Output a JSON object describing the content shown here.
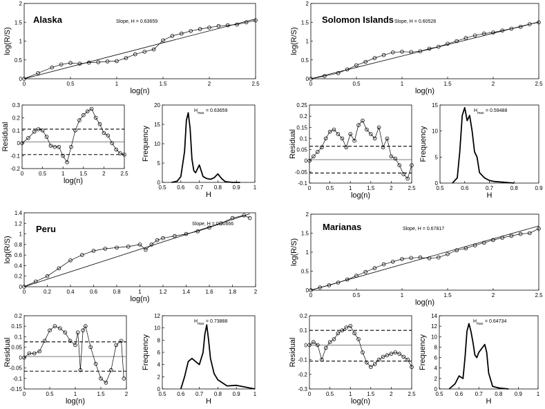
{
  "figure": {
    "text_color": "#000000",
    "line_color": "#000000",
    "marker": "open-circle"
  },
  "chart_data": [
    {
      "region": "Alaska",
      "rs": {
        "type": "scatter",
        "title": "Alaska",
        "annotation": "Slope, H = 0.63659",
        "xlabel": "log(n)",
        "ylabel": "log(R/S)",
        "xlim": [
          0,
          2.5
        ],
        "ylim": [
          0,
          2
        ],
        "xticks": [
          "0",
          "0.5",
          "1",
          "1.5",
          "2",
          "2.5"
        ],
        "yticks": [
          "0",
          "0.5",
          "1",
          "1.5",
          "2"
        ],
        "fit_line": {
          "x": [
            0,
            2.5
          ],
          "y": [
            0,
            1.59
          ]
        },
        "points": {
          "x": [
            0,
            0.15,
            0.3,
            0.4,
            0.5,
            0.6,
            0.7,
            0.8,
            0.9,
            1.0,
            1.1,
            1.2,
            1.3,
            1.4,
            1.5,
            1.6,
            1.7,
            1.8,
            1.9,
            2.0,
            2.1,
            2.2,
            2.3,
            2.4,
            2.5
          ],
          "y": [
            0,
            0.15,
            0.3,
            0.38,
            0.42,
            0.4,
            0.43,
            0.44,
            0.46,
            0.47,
            0.55,
            0.65,
            0.72,
            0.78,
            1.02,
            1.14,
            1.2,
            1.27,
            1.32,
            1.36,
            1.4,
            1.42,
            1.44,
            1.5,
            1.55
          ]
        }
      },
      "resid": {
        "type": "scatter",
        "xlabel": "log(n)",
        "ylabel": "Residual",
        "xlim": [
          0,
          2.5
        ],
        "ylim": [
          -0.2,
          0.3
        ],
        "xticks": [
          "0",
          "0.5",
          "1",
          "1.5",
          "2",
          "2.5"
        ],
        "yticks": [
          "-0.2",
          "-0.1",
          "0",
          "0.1",
          "0.2",
          "0.3"
        ],
        "hlines": [
          0.11,
          0.01,
          -0.09
        ],
        "points": {
          "x": [
            0,
            0.15,
            0.3,
            0.4,
            0.5,
            0.6,
            0.7,
            0.8,
            0.9,
            1.0,
            1.1,
            1.2,
            1.3,
            1.4,
            1.5,
            1.6,
            1.7,
            1.8,
            1.9,
            2.0,
            2.1,
            2.2,
            2.3,
            2.4,
            2.5
          ],
          "y": [
            0,
            0.04,
            0.09,
            0.11,
            0.1,
            0.05,
            -0.02,
            -0.03,
            -0.03,
            -0.1,
            -0.15,
            -0.03,
            0.1,
            0.18,
            0.22,
            0.25,
            0.27,
            0.2,
            0.15,
            0.08,
            0.06,
            0.0,
            -0.05,
            -0.08,
            -0.09
          ]
        }
      },
      "hist": {
        "type": "line",
        "annotation_main": "H",
        "annotation_sub": "max",
        "annotation_value": "= 0.63659",
        "xlabel": "H",
        "ylabel": "Frequency",
        "xlim": [
          0.5,
          1
        ],
        "ylim": [
          0,
          20
        ],
        "xticks": [
          "0.5",
          "0.6",
          "0.7",
          "0.8",
          "0.9",
          "1"
        ],
        "yticks": [
          "0",
          "5",
          "10",
          "15",
          "20"
        ],
        "x": [
          0.55,
          0.58,
          0.6,
          0.62,
          0.63,
          0.64,
          0.65,
          0.66,
          0.67,
          0.68,
          0.69,
          0.7,
          0.71,
          0.72,
          0.74,
          0.76,
          0.78,
          0.8,
          0.82,
          0.84,
          0.88,
          0.92
        ],
        "y": [
          0,
          0.3,
          1.5,
          8,
          16,
          18,
          14,
          6,
          3,
          2.5,
          3.5,
          4.5,
          3,
          1.5,
          1,
          0.8,
          1.2,
          2.2,
          1,
          0.2,
          0,
          0
        ]
      }
    },
    {
      "region": "Solomon Islands",
      "rs": {
        "type": "scatter",
        "title": "Solomon Islands",
        "annotation": "Slope, H = 0.60528",
        "xlabel": "log(n)",
        "ylabel": "log(R/S)",
        "xlim": [
          0,
          2.5
        ],
        "ylim": [
          0,
          2
        ],
        "xticks": [
          "0",
          "0.5",
          "1",
          "1.5",
          "2",
          "2.5"
        ],
        "yticks": [
          "0",
          "0.5",
          "1",
          "1.5",
          "2"
        ],
        "fit_line": {
          "x": [
            0,
            2.5
          ],
          "y": [
            0,
            1.51
          ]
        },
        "points": {
          "x": [
            0,
            0.15,
            0.3,
            0.4,
            0.5,
            0.6,
            0.7,
            0.8,
            0.9,
            1.0,
            1.1,
            1.2,
            1.3,
            1.4,
            1.5,
            1.6,
            1.7,
            1.8,
            1.9,
            2.0,
            2.1,
            2.2,
            2.3,
            2.4,
            2.5
          ],
          "y": [
            0,
            0.07,
            0.15,
            0.25,
            0.36,
            0.45,
            0.55,
            0.63,
            0.7,
            0.72,
            0.71,
            0.73,
            0.8,
            0.85,
            0.93,
            1.0,
            1.08,
            1.15,
            1.2,
            1.23,
            1.28,
            1.33,
            1.38,
            1.45,
            1.5
          ]
        }
      },
      "resid": {
        "type": "scatter",
        "xlabel": "log(n)",
        "ylabel": "Residual",
        "xlim": [
          0,
          2.5
        ],
        "ylim": [
          -0.1,
          0.25
        ],
        "xticks": [
          "0",
          "0.5",
          "1",
          "1.5",
          "2",
          "2.5"
        ],
        "yticks": [
          "-0.1",
          "-0.05",
          "0",
          "0.05",
          "0.1",
          "0.15",
          "0.2",
          "0.25"
        ],
        "hlines": [
          0.065,
          0.005,
          -0.055
        ],
        "points": {
          "x": [
            0,
            0.1,
            0.2,
            0.3,
            0.4,
            0.5,
            0.6,
            0.7,
            0.8,
            0.9,
            1.0,
            1.1,
            1.2,
            1.3,
            1.4,
            1.5,
            1.6,
            1.7,
            1.8,
            1.9,
            2.0,
            2.1,
            2.2,
            2.3,
            2.4,
            2.5
          ],
          "y": [
            0,
            0.02,
            0.04,
            0.06,
            0.1,
            0.13,
            0.14,
            0.12,
            0.1,
            0.06,
            0.12,
            0.09,
            0.16,
            0.18,
            0.14,
            0.12,
            0.1,
            0.15,
            0.06,
            0.1,
            0.02,
            0.01,
            -0.02,
            -0.06,
            -0.08,
            -0.02
          ]
        }
      },
      "hist": {
        "type": "line",
        "annotation_main": "H",
        "annotation_sub": "max",
        "annotation_value": "= 0.59488",
        "xlabel": "H",
        "ylabel": "Frequency",
        "xlim": [
          0.5,
          0.9
        ],
        "ylim": [
          0,
          15
        ],
        "xticks": [
          "0.5",
          "0.6",
          "0.7",
          "0.8",
          "0.9"
        ],
        "yticks": [
          "0",
          "5",
          "10",
          "15"
        ],
        "x": [
          0.55,
          0.57,
          0.58,
          0.59,
          0.6,
          0.61,
          0.62,
          0.63,
          0.64,
          0.65,
          0.66,
          0.68,
          0.7,
          0.72,
          0.75,
          0.8
        ],
        "y": [
          0,
          1,
          6,
          13,
          14.5,
          12,
          13,
          10,
          6,
          5,
          2,
          1,
          0.5,
          0.3,
          0.2,
          0
        ]
      }
    },
    {
      "region": "Peru",
      "rs": {
        "type": "scatter",
        "title": "Peru",
        "annotation": "Slope, H = 0.70666",
        "xlabel": "log(n)",
        "ylabel": "log(R/S)",
        "xlim": [
          0,
          2
        ],
        "ylim": [
          0,
          1.4
        ],
        "xticks": [
          "0",
          "0.2",
          "0.4",
          "0.6",
          "0.8",
          "1",
          "1.2",
          "1.4",
          "1.6",
          "1.8",
          "2"
        ],
        "yticks": [
          "0",
          "0.2",
          "0.4",
          "0.6",
          "0.8",
          "1",
          "1.2",
          "1.4"
        ],
        "fit_line": {
          "x": [
            0,
            1.95
          ],
          "y": [
            0,
            1.38
          ]
        },
        "points": {
          "x": [
            0,
            0.1,
            0.2,
            0.3,
            0.4,
            0.5,
            0.6,
            0.7,
            0.8,
            0.9,
            1.0,
            1.05,
            1.1,
            1.15,
            1.2,
            1.3,
            1.4,
            1.5,
            1.6,
            1.7,
            1.8,
            1.9,
            1.95
          ],
          "y": [
            0,
            0.1,
            0.2,
            0.35,
            0.5,
            0.6,
            0.68,
            0.72,
            0.74,
            0.76,
            0.8,
            0.7,
            0.8,
            0.88,
            0.92,
            0.96,
            1.0,
            1.05,
            1.12,
            1.2,
            1.3,
            1.35,
            1.3
          ]
        }
      },
      "resid": {
        "type": "scatter",
        "xlabel": "log(n)",
        "ylabel": "Residual",
        "xlim": [
          0,
          2
        ],
        "ylim": [
          -0.15,
          0.2
        ],
        "xticks": [
          "0",
          "0.5",
          "1",
          "1.5",
          "2"
        ],
        "yticks": [
          "-0.15",
          "-0.1",
          "-0.05",
          "0",
          "0.05",
          "0.1",
          "0.15",
          "0.2"
        ],
        "hlines": [
          0.075,
          0.005,
          -0.065
        ],
        "points": {
          "x": [
            0,
            0.1,
            0.2,
            0.3,
            0.4,
            0.5,
            0.6,
            0.7,
            0.8,
            0.9,
            1.0,
            1.05,
            1.1,
            1.15,
            1.2,
            1.3,
            1.4,
            1.5,
            1.6,
            1.7,
            1.8,
            1.9,
            1.95
          ],
          "y": [
            0,
            0.02,
            0.02,
            0.03,
            0.08,
            0.13,
            0.15,
            0.14,
            0.12,
            0.08,
            0.06,
            0.12,
            -0.06,
            0.13,
            0.15,
            0.05,
            -0.03,
            -0.1,
            -0.12,
            -0.06,
            0.06,
            0.08,
            -0.1
          ]
        }
      },
      "hist": {
        "type": "line",
        "annotation_main": "H",
        "annotation_sub": "max",
        "annotation_value": "= 0.73888",
        "xlabel": "H",
        "ylabel": "Frequency",
        "xlim": [
          0.5,
          1
        ],
        "ylim": [
          0,
          12
        ],
        "xticks": [
          "0.5",
          "0.6",
          "0.7",
          "0.8",
          "0.9",
          "1"
        ],
        "yticks": [
          "0",
          "2",
          "4",
          "6",
          "8",
          "10",
          "12"
        ],
        "x": [
          0.6,
          0.62,
          0.64,
          0.66,
          0.68,
          0.7,
          0.72,
          0.73,
          0.74,
          0.75,
          0.76,
          0.78,
          0.8,
          0.85,
          0.9,
          0.95,
          1.0
        ],
        "y": [
          0,
          2,
          4.5,
          5,
          4.5,
          4,
          6,
          9,
          10.5,
          8,
          5,
          2.5,
          1.5,
          0.5,
          0.6,
          0.3,
          0
        ]
      }
    },
    {
      "region": "Marianas",
      "rs": {
        "type": "scatter",
        "title": "Marianas",
        "annotation": "Slope, H = 0.67817",
        "xlabel": "log(n)",
        "ylabel": "log(R/S)",
        "xlim": [
          0,
          2.5
        ],
        "ylim": [
          0,
          2
        ],
        "xticks": [
          "0",
          "0.5",
          "1",
          "1.5",
          "2",
          "2.5"
        ],
        "yticks": [
          "0",
          "0.5",
          "1",
          "1.5",
          "2"
        ],
        "fit_line": {
          "x": [
            0,
            2.5
          ],
          "y": [
            0,
            1.69
          ]
        },
        "points": {
          "x": [
            0,
            0.1,
            0.2,
            0.3,
            0.4,
            0.5,
            0.6,
            0.7,
            0.8,
            0.9,
            1.0,
            1.1,
            1.2,
            1.3,
            1.4,
            1.5,
            1.6,
            1.7,
            1.8,
            1.9,
            2.0,
            2.1,
            2.2,
            2.3,
            2.4,
            2.5
          ],
          "y": [
            0,
            0.07,
            0.13,
            0.2,
            0.28,
            0.38,
            0.48,
            0.58,
            0.68,
            0.75,
            0.82,
            0.85,
            0.86,
            0.84,
            0.86,
            0.95,
            1.05,
            1.1,
            1.18,
            1.25,
            1.32,
            1.38,
            1.43,
            1.48,
            1.5,
            1.62
          ]
        }
      },
      "resid": {
        "type": "scatter",
        "xlabel": "log(n)",
        "ylabel": "Residual",
        "xlim": [
          0,
          2.5
        ],
        "ylim": [
          -0.3,
          0.2
        ],
        "xticks": [
          "0",
          "0.5",
          "1",
          "1.5",
          "2",
          "2.5"
        ],
        "yticks": [
          "-0.3",
          "-0.2",
          "-0.1",
          "0",
          "0.1",
          "0.2"
        ],
        "hlines": [
          0.1,
          0.0,
          -0.11
        ],
        "points": {
          "x": [
            0,
            0.1,
            0.2,
            0.3,
            0.4,
            0.5,
            0.6,
            0.7,
            0.8,
            0.9,
            1.0,
            1.1,
            1.2,
            1.3,
            1.4,
            1.5,
            1.6,
            1.7,
            1.8,
            1.9,
            2.0,
            2.1,
            2.2,
            2.3,
            2.4,
            2.5
          ],
          "y": [
            0,
            0.02,
            0.0,
            -0.1,
            -0.02,
            0.02,
            0.04,
            0.08,
            0.1,
            0.12,
            0.13,
            0.08,
            0.04,
            -0.05,
            -0.12,
            -0.15,
            -0.13,
            -0.1,
            -0.08,
            -0.07,
            -0.06,
            -0.05,
            -0.06,
            -0.08,
            -0.1,
            -0.15
          ]
        }
      },
      "hist": {
        "type": "line",
        "annotation_main": "H",
        "annotation_sub": "max",
        "annotation_value": "= 0.64734",
        "xlabel": "H",
        "ylabel": "Frequency",
        "xlim": [
          0.5,
          1
        ],
        "ylim": [
          0,
          14
        ],
        "xticks": [
          "0.5",
          "0.6",
          "0.7",
          "0.8",
          "0.9",
          "1"
        ],
        "yticks": [
          "0",
          "2",
          "4",
          "6",
          "8",
          "10",
          "12",
          "14"
        ],
        "x": [
          0.55,
          0.58,
          0.6,
          0.62,
          0.63,
          0.64,
          0.65,
          0.66,
          0.67,
          0.68,
          0.69,
          0.7,
          0.72,
          0.73,
          0.74,
          0.75,
          0.77,
          0.8,
          0.85
        ],
        "y": [
          0,
          1,
          2.5,
          2,
          6,
          11,
          12.5,
          11,
          9,
          6.5,
          6,
          7,
          8,
          8.5,
          7,
          3,
          0.5,
          0.2,
          0
        ]
      }
    }
  ]
}
